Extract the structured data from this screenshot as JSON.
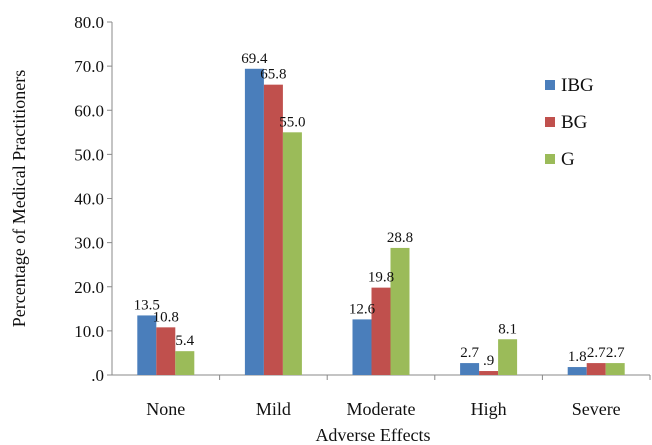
{
  "chart_data": {
    "type": "bar",
    "title": "",
    "xlabel": "Adverse Effects",
    "ylabel": "Percentage of Medical Practitioners",
    "categories": [
      "None",
      "Mild",
      "Moderate",
      "High",
      "Severe"
    ],
    "ylim": [
      0,
      80
    ],
    "yticks": [
      0,
      10,
      20,
      30,
      40,
      50,
      60,
      70,
      80
    ],
    "ytick_labels": [
      ".0",
      "10.0",
      "20.0",
      "30.0",
      "40.0",
      "50.0",
      "60.0",
      "70.0",
      "80.0"
    ],
    "grid": false,
    "legend": "right",
    "series": [
      {
        "name": "IBG",
        "color": "#4a7ebb",
        "values": [
          13.5,
          69.4,
          12.6,
          2.7,
          1.8
        ],
        "labels": [
          "13.5",
          "69.4",
          "12.6",
          "2.7",
          "1.8"
        ]
      },
      {
        "name": "BG",
        "color": "#c0504d",
        "values": [
          10.8,
          65.8,
          19.8,
          0.9,
          2.7
        ],
        "labels": [
          "10.8",
          "65.8",
          "19.8",
          ".9",
          "2.7"
        ]
      },
      {
        "name": "G",
        "color": "#9bbb59",
        "values": [
          5.4,
          55.0,
          28.8,
          8.1,
          2.7
        ],
        "labels": [
          "5.4",
          "55.0",
          "28.8",
          "8.1",
          "2.7"
        ]
      }
    ]
  }
}
